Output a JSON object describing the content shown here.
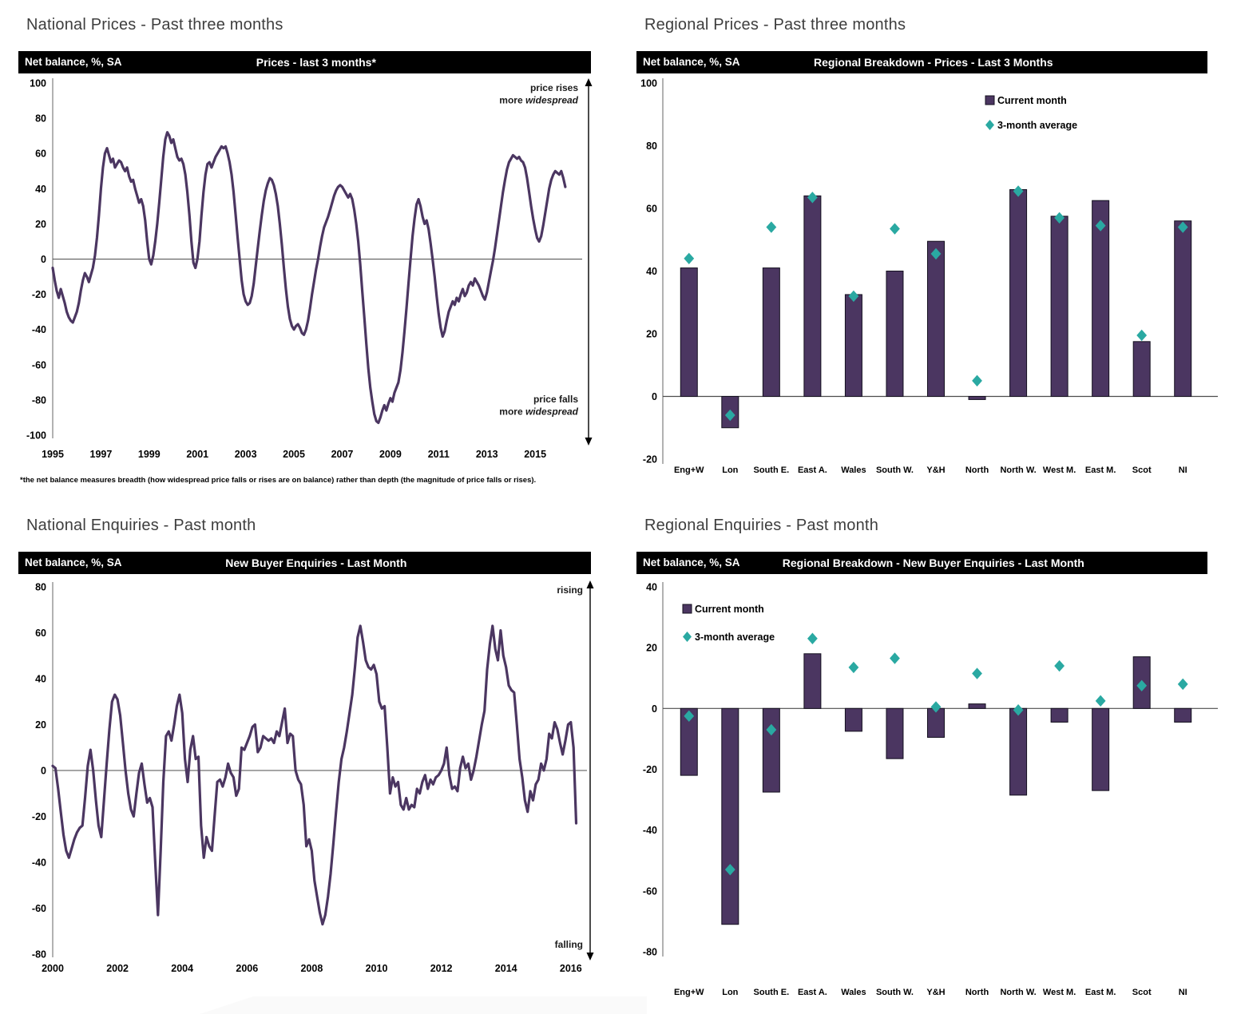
{
  "colors": {
    "series": "#4b3661",
    "average": "#2aa9a2",
    "header_bg": "#000000",
    "header_fg": "#ffffff",
    "zero_line": "#4d4d4d",
    "axis_line": "#9e9e9e"
  },
  "chart_data": [
    {
      "id": "national-prices",
      "panel_title": "National Prices - Past three months",
      "header_left": "Net balance, %, SA",
      "header_title": "Prices - last 3 months*",
      "type": "line",
      "xlim": [
        1995,
        2016.75
      ],
      "ylim": [
        -100,
        100
      ],
      "yticks": [
        100,
        80,
        60,
        40,
        20,
        0,
        -20,
        -40,
        -60,
        -80,
        -100
      ],
      "xticks": [
        1995,
        1997,
        1999,
        2001,
        2003,
        2005,
        2007,
        2009,
        2011,
        2013,
        2015
      ],
      "annotation_top": {
        "lines": [
          [
            "price rises"
          ],
          [
            "more ",
            "widespread"
          ]
        ]
      },
      "annotation_bottom": {
        "lines": [
          [
            "price falls"
          ],
          [
            "more ",
            "widespread"
          ]
        ]
      },
      "footnote": "*the net balance measures breadth (how widespread price falls or rises are on balance)  rather than depth (the magnitude of price falls or rises).",
      "series": {
        "name": "Prices net balance",
        "start": 1995.0,
        "step": 0.08333,
        "values": [
          -5,
          -12,
          -18,
          -22,
          -17,
          -21,
          -25,
          -30,
          -33,
          -35,
          -36,
          -33,
          -30,
          -25,
          -18,
          -12,
          -8,
          -10,
          -13,
          -9,
          -5,
          2,
          12,
          25,
          40,
          52,
          60,
          63,
          59,
          55,
          57,
          52,
          54,
          56,
          55,
          52,
          50,
          52,
          47,
          44,
          45,
          40,
          36,
          32,
          34,
          30,
          22,
          10,
          0,
          -3,
          2,
          10,
          20,
          32,
          45,
          58,
          68,
          72,
          70,
          66,
          68,
          63,
          58,
          56,
          57,
          54,
          48,
          38,
          25,
          10,
          -2,
          -5,
          0,
          10,
          25,
          38,
          48,
          54,
          55,
          52,
          55,
          58,
          60,
          62,
          64,
          63,
          64,
          60,
          55,
          48,
          38,
          25,
          12,
          0,
          -12,
          -20,
          -24,
          -26,
          -25,
          -21,
          -14,
          -4,
          6,
          16,
          25,
          33,
          39,
          43,
          46,
          45,
          42,
          37,
          30,
          20,
          8,
          -5,
          -17,
          -27,
          -34,
          -38,
          -40,
          -38,
          -37,
          -39,
          -42,
          -43,
          -40,
          -35,
          -28,
          -20,
          -13,
          -6,
          0,
          7,
          13,
          18,
          21,
          24,
          28,
          32,
          36,
          39,
          41,
          42,
          41,
          39,
          37,
          35,
          37,
          34,
          28,
          20,
          10,
          -3,
          -18,
          -33,
          -48,
          -62,
          -73,
          -81,
          -88,
          -92,
          -93,
          -90,
          -86,
          -83,
          -86,
          -82,
          -79,
          -81,
          -76,
          -73,
          -70,
          -63,
          -53,
          -41,
          -28,
          -14,
          0,
          13,
          23,
          31,
          34,
          30,
          24,
          20,
          22,
          17,
          9,
          0,
          -10,
          -21,
          -31,
          -39,
          -44,
          -41,
          -35,
          -30,
          -27,
          -24,
          -26,
          -22,
          -24,
          -20,
          -17,
          -21,
          -19,
          -15,
          -13,
          -15,
          -11,
          -13,
          -15,
          -18,
          -21,
          -23,
          -19,
          -13,
          -7,
          -1,
          6,
          14,
          22,
          30,
          38,
          45,
          51,
          55,
          57,
          59,
          58,
          57,
          58,
          56,
          55,
          52,
          46,
          38,
          30,
          23,
          17,
          12,
          10,
          13,
          19,
          26,
          33,
          40,
          45,
          48,
          50,
          49,
          48,
          50,
          46,
          41
        ]
      }
    },
    {
      "id": "regional-prices",
      "panel_title": "Regional Prices - Past three months",
      "header_left": "Net balance, %, SA",
      "header_title": "Regional Breakdown - Prices - Last 3 Months",
      "type": "bar",
      "ylim": [
        -20,
        100
      ],
      "yticks": [
        100,
        80,
        60,
        40,
        20,
        0,
        -20
      ],
      "categories": [
        "Eng+W",
        "Lon",
        "South E.",
        "East A.",
        "Wales",
        "South W.",
        "Y&H",
        "North",
        "North W.",
        "West M.",
        "East M.",
        "Scot",
        "NI"
      ],
      "legend": [
        {
          "label": "Current month",
          "marker": "square"
        },
        {
          "label": "3-month average",
          "marker": "diamond"
        }
      ],
      "legend_position": "top-right",
      "series": [
        {
          "name": "Current month",
          "style": "bar",
          "values": [
            41,
            -10,
            41,
            64,
            32.5,
            40,
            49.5,
            -1,
            66,
            57.5,
            62.5,
            17.5,
            56
          ]
        },
        {
          "name": "3-month average",
          "style": "diamond",
          "values": [
            44,
            -6,
            54,
            63.5,
            32,
            53.5,
            45.5,
            5,
            65.5,
            57,
            54.5,
            19.5,
            54
          ]
        }
      ]
    },
    {
      "id": "national-enquiries",
      "panel_title": "National Enquiries - Past month",
      "header_left": "Net balance, %, SA",
      "header_title": "New Buyer Enquiries - Last Month",
      "type": "line",
      "xlim": [
        2000,
        2016.35
      ],
      "ylim": [
        -80,
        80
      ],
      "yticks": [
        80,
        60,
        40,
        20,
        0,
        -20,
        -40,
        -60,
        -80
      ],
      "xticks": [
        2000,
        2002,
        2004,
        2006,
        2008,
        2010,
        2012,
        2014,
        2016
      ],
      "annotation_top": {
        "lines": [
          [
            "rising"
          ]
        ]
      },
      "annotation_bottom": {
        "lines": [
          [
            "falling"
          ]
        ]
      },
      "footnote": "",
      "series": {
        "name": "New buyer enquiries net balance",
        "start": 2000.0,
        "step": 0.08333,
        "values": [
          2,
          1,
          -8,
          -18,
          -28,
          -35,
          -38,
          -34,
          -30,
          -27,
          -25,
          -24,
          -12,
          2,
          9,
          0,
          -13,
          -24,
          -29,
          -13,
          3,
          18,
          30,
          33,
          31,
          24,
          12,
          0,
          -10,
          -17,
          -20,
          -10,
          -1,
          3,
          -6,
          -14,
          -12,
          -16,
          -40,
          -63,
          -35,
          -5,
          15,
          17,
          13,
          20,
          28,
          33,
          25,
          5,
          -5,
          9,
          15,
          5,
          6,
          -24,
          -38,
          -29,
          -33,
          -35,
          -20,
          -5,
          -4,
          -7,
          -3,
          3,
          -1,
          -3,
          -11,
          -8,
          10,
          9,
          12,
          15,
          19,
          20,
          8,
          10,
          15,
          14,
          13,
          14,
          12,
          17,
          15,
          21,
          27,
          12,
          16,
          15,
          0,
          -4,
          -6,
          -15,
          -33,
          -30,
          -35,
          -48,
          -55,
          -62,
          -67,
          -63,
          -55,
          -45,
          -32,
          -18,
          -5,
          5,
          10,
          17,
          25,
          33,
          45,
          58,
          63,
          56,
          48,
          45,
          44,
          46,
          42,
          30,
          27,
          28,
          10,
          -10,
          -3,
          -7,
          -5,
          -15,
          -17,
          -12,
          -17,
          -15,
          -16,
          -8,
          -10,
          -5,
          -2,
          -8,
          -4,
          -6,
          -3,
          -2,
          0,
          3,
          10,
          -2,
          -8,
          -7,
          -9,
          1,
          6,
          1,
          3,
          -4,
          0,
          6,
          13,
          20,
          26,
          44,
          55,
          63,
          53,
          48,
          61,
          50,
          45,
          37,
          35,
          34,
          20,
          5,
          -3,
          -13,
          -18,
          -9,
          -13,
          -6,
          -4,
          3,
          0,
          5,
          16,
          14,
          21,
          18,
          12,
          7,
          13,
          20,
          21,
          10,
          -23
        ]
      }
    },
    {
      "id": "regional-enquiries",
      "panel_title": "Regional Enquiries - Past month",
      "header_left": "Net balance, %, SA",
      "header_title": "Regional Breakdown - New Buyer Enquiries - Last Month",
      "type": "bar",
      "ylim": [
        -80,
        40
      ],
      "yticks": [
        40,
        20,
        0,
        -20,
        -40,
        -60,
        -80
      ],
      "categories": [
        "Eng+W",
        "Lon",
        "South E.",
        "East A.",
        "Wales",
        "South W.",
        "Y&H",
        "North",
        "North W.",
        "West M.",
        "East M.",
        "Scot",
        "NI"
      ],
      "legend": [
        {
          "label": "Current month",
          "marker": "square"
        },
        {
          "label": "3-month average",
          "marker": "diamond"
        }
      ],
      "legend_position": "top-left",
      "series": [
        {
          "name": "Current month",
          "style": "bar",
          "values": [
            -22,
            -71,
            -27.5,
            18,
            -7.5,
            -16.5,
            -9.5,
            1.5,
            -28.5,
            -4.5,
            -27,
            17,
            -4.5
          ]
        },
        {
          "name": "3-month average",
          "style": "diamond",
          "values": [
            -2.5,
            -53,
            -7,
            23,
            13.5,
            16.5,
            0.5,
            11.5,
            -0.5,
            14,
            2.5,
            7.5,
            8
          ]
        }
      ]
    }
  ]
}
